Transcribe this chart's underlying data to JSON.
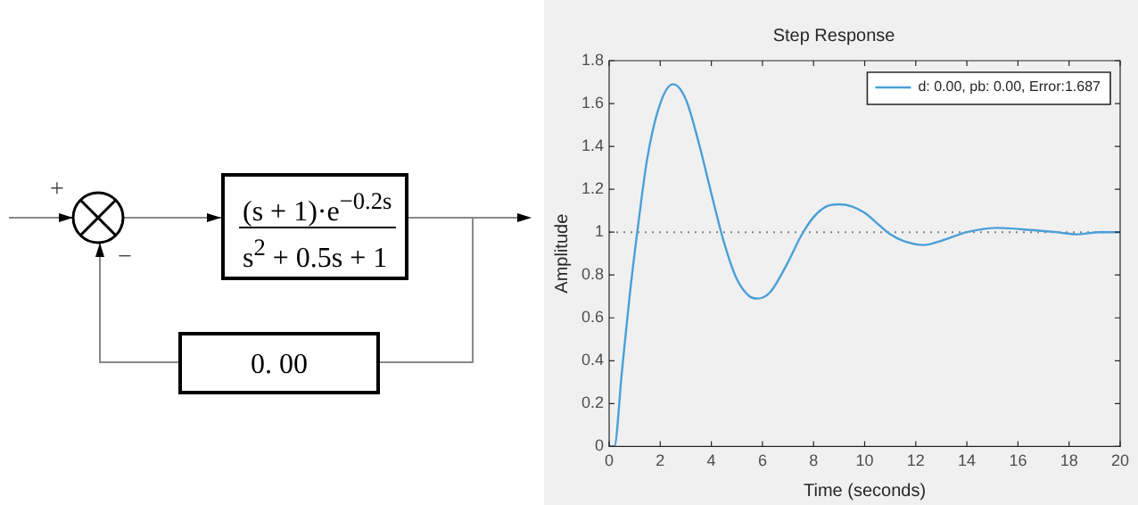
{
  "chart_data": [
    {
      "type": "other",
      "annotations": [
        "+",
        "−",
        "(s + 1)·e$^{−0.2s}$",
        "s$^{2}$ + 0.5s + 1",
        "0. 00"
      ]
    },
    {
      "type": "line",
      "title": "Step Response",
      "xlabel": "Time (seconds)",
      "ylabel": "Amplitude",
      "series": [
        {
          "name": "d: 0.00, pb: 0.00, Error:1.687",
          "color": "#4a9fd8",
          "x": [
            0,
            0.2,
            0.5,
            0.8,
            1.1,
            1.5,
            2.0,
            2.5,
            3.0,
            3.5,
            4.0,
            4.5,
            5.0,
            5.5,
            5.8,
            6.3,
            7.0,
            7.5,
            8.0,
            8.5,
            9.0,
            9.5,
            10,
            10.5,
            11,
            11.5,
            12.3,
            13,
            14,
            15.2,
            16.5,
            17.5,
            18.3,
            19.2,
            20
          ],
          "values": [
            0,
            0,
            0.35,
            0.7,
            1.0,
            1.35,
            1.6,
            1.69,
            1.62,
            1.42,
            1.18,
            0.95,
            0.78,
            0.7,
            0.69,
            0.72,
            0.86,
            0.98,
            1.07,
            1.12,
            1.13,
            1.12,
            1.09,
            1.04,
            0.99,
            0.96,
            0.94,
            0.96,
            1.0,
            1.02,
            1.01,
            1.0,
            0.99,
            1.0,
            1.0
          ]
        }
      ],
      "xlim": [
        0,
        20
      ],
      "xticks": [
        0,
        2,
        4,
        6,
        8,
        10,
        12,
        14,
        16,
        18,
        20
      ],
      "ylim": [
        0,
        1.8
      ],
      "yticks": [
        0,
        0.2,
        0.4,
        0.6,
        0.8,
        1,
        1.2,
        1.4,
        1.6,
        1.8
      ],
      "ref_lines": [
        {
          "axis": "y",
          "value": 1,
          "color": "#808080",
          "line_style": "dotted"
        }
      ],
      "grid": false,
      "legend": "top right",
      "marker": "none",
      "line_style": "solid"
    }
  ]
}
